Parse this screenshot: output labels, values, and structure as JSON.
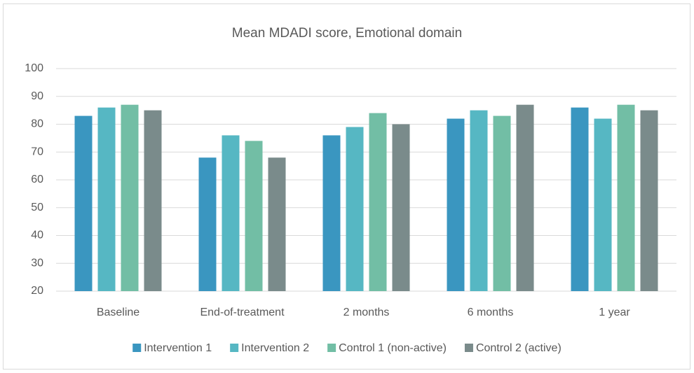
{
  "chart_data": {
    "type": "bar",
    "title": "Mean MDADI score, Emotional domain",
    "categories": [
      "Baseline",
      "End-of-treatment",
      "2 months",
      "6 months",
      "1 year"
    ],
    "series": [
      {
        "name": "Intervention 1",
        "color": "#3a96c0",
        "values": [
          83,
          68,
          76,
          82,
          86
        ]
      },
      {
        "name": "Intervention 2",
        "color": "#56b7c3",
        "values": [
          86,
          76,
          79,
          85,
          82
        ]
      },
      {
        "name": "Control 1 (non-active)",
        "color": "#72bea5",
        "values": [
          87,
          74,
          84,
          83,
          87
        ]
      },
      {
        "name": "Control 2 (active)",
        "color": "#7a8b8b",
        "values": [
          85,
          68,
          80,
          87,
          85
        ]
      }
    ],
    "ylim": [
      20,
      100
    ],
    "yticks": [
      20,
      30,
      40,
      50,
      60,
      70,
      80,
      90,
      100
    ],
    "grid": true,
    "legend": "bottom"
  }
}
